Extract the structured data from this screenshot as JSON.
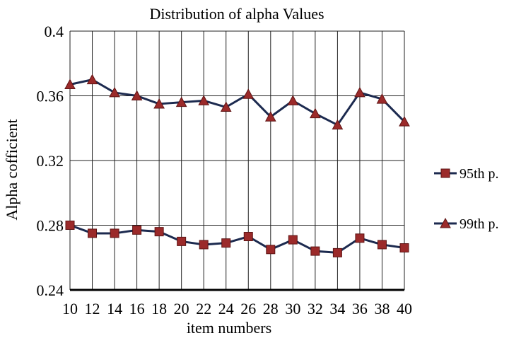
{
  "chart_data": {
    "type": "line",
    "title": "Distribution of alpha Values",
    "xlabel": "item numbers",
    "ylabel": "Alpha cofficient",
    "x": [
      10,
      12,
      14,
      16,
      18,
      20,
      22,
      24,
      26,
      28,
      30,
      32,
      34,
      36,
      38,
      40
    ],
    "xlim": [
      10,
      40
    ],
    "ylim": [
      0.24,
      0.4
    ],
    "yticks": [
      0.24,
      0.28,
      0.32,
      0.36,
      0.4
    ],
    "ytick_labels": [
      "0.24",
      "0.28",
      "0.32",
      "0.36",
      "0.4"
    ],
    "grid": true,
    "legend_position": "right",
    "line_color": "#1c2a4f",
    "series": [
      {
        "name": "95th p.",
        "marker": "square",
        "marker_color": "#9b2a2a",
        "values": [
          0.28,
          0.275,
          0.275,
          0.277,
          0.276,
          0.27,
          0.268,
          0.269,
          0.273,
          0.265,
          0.271,
          0.264,
          0.263,
          0.272,
          0.268,
          0.266
        ]
      },
      {
        "name": "99th p.",
        "marker": "triangle",
        "marker_color": "#9b2a2a",
        "values": [
          0.367,
          0.37,
          0.362,
          0.36,
          0.355,
          0.356,
          0.357,
          0.353,
          0.361,
          0.347,
          0.357,
          0.349,
          0.342,
          0.362,
          0.358,
          0.344
        ]
      }
    ]
  }
}
